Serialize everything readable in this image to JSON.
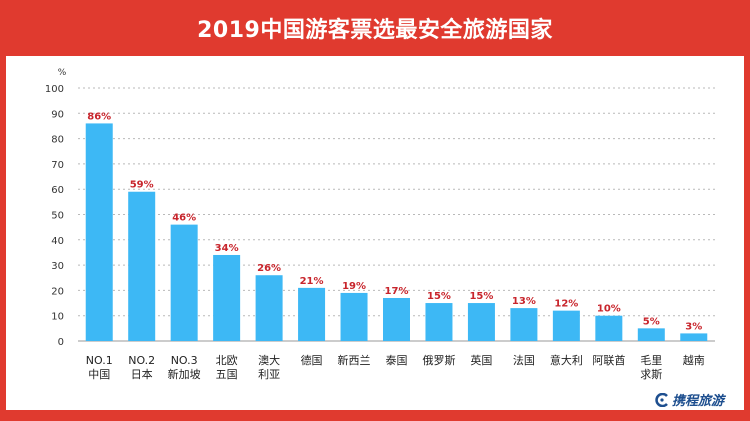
{
  "title": "2019中国游客票选最安全旅游国家",
  "brand": {
    "name": "携程旅游",
    "icon": "ctrip-logo-icon"
  },
  "colors": {
    "accent": "#e03a2f",
    "bar": "#3db8f5",
    "value_label": "#c8252c",
    "top_label": "#e03a2f",
    "brand": "#1e4f8f"
  },
  "chart_data": {
    "type": "bar",
    "title": "2019中国游客票选最安全旅游国家",
    "ylabel": "%",
    "xlabel": "",
    "ylim": [
      0,
      100
    ],
    "yticks": [
      0,
      10,
      20,
      30,
      40,
      50,
      60,
      70,
      80,
      90,
      100
    ],
    "grid": true,
    "categories": [
      [
        "NO.1",
        "中国"
      ],
      [
        "NO.2",
        "日本"
      ],
      [
        "NO.3",
        "新加坡"
      ],
      [
        "北欧",
        "五国"
      ],
      [
        "澳大",
        "利亚"
      ],
      [
        "德国"
      ],
      [
        "新西兰"
      ],
      [
        "泰国"
      ],
      [
        "俄罗斯"
      ],
      [
        "英国"
      ],
      [
        "法国"
      ],
      [
        "意大利"
      ],
      [
        "阿联酋"
      ],
      [
        "毛里",
        "求斯"
      ],
      [
        "越南"
      ]
    ],
    "values": [
      86,
      59,
      46,
      34,
      26,
      21,
      19,
      17,
      15,
      15,
      13,
      12,
      10,
      5,
      3
    ],
    "value_labels": [
      "86%",
      "59%",
      "46%",
      "34%",
      "26%",
      "21%",
      "19%",
      "17%",
      "15%",
      "15%",
      "13%",
      "12%",
      "10%",
      "5%",
      "3%"
    ],
    "highlighted_top": 3
  }
}
